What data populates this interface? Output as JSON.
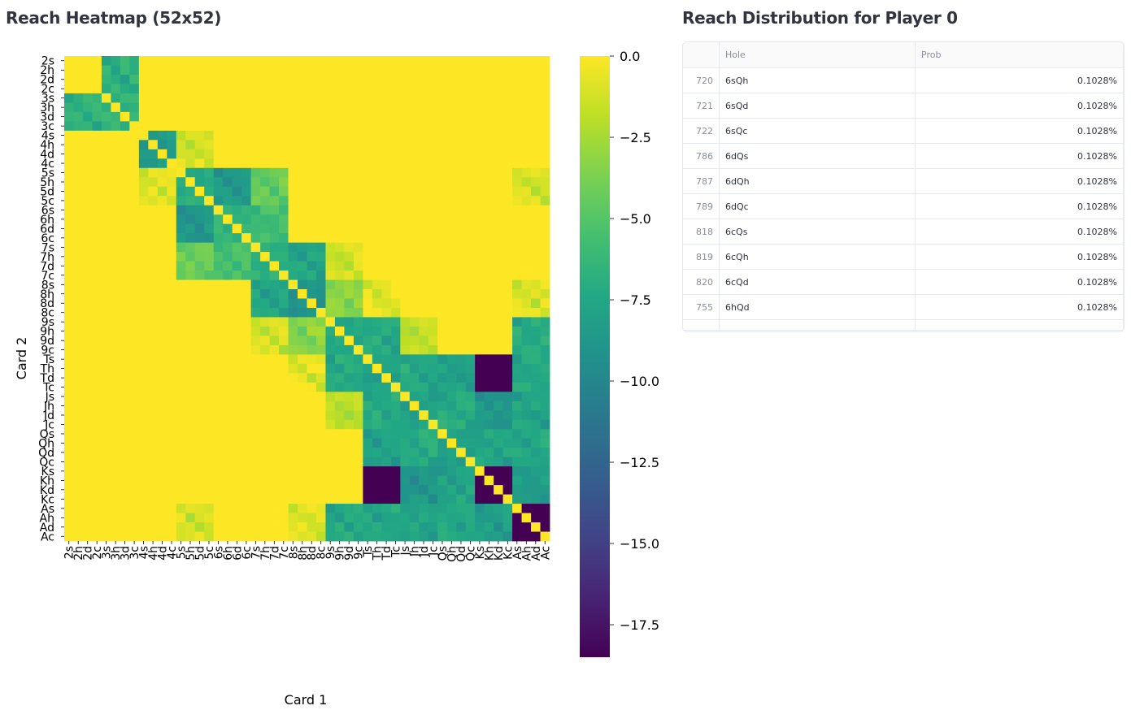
{
  "heatmap_section": {
    "title": "Reach Heatmap (52x52)"
  },
  "distribution_section": {
    "title": "Reach Distribution for Player 0"
  },
  "table": {
    "columns": [
      "",
      "Hole",
      "Prob"
    ],
    "rows": [
      {
        "index": "720",
        "hole": "6sQh",
        "prob": "0.1028%"
      },
      {
        "index": "721",
        "hole": "6sQd",
        "prob": "0.1028%"
      },
      {
        "index": "722",
        "hole": "6sQc",
        "prob": "0.1028%"
      },
      {
        "index": "786",
        "hole": "6dQs",
        "prob": "0.1028%"
      },
      {
        "index": "787",
        "hole": "6dQh",
        "prob": "0.1028%"
      },
      {
        "index": "789",
        "hole": "6dQc",
        "prob": "0.1028%"
      },
      {
        "index": "818",
        "hole": "6cQs",
        "prob": "0.1028%"
      },
      {
        "index": "819",
        "hole": "6cQh",
        "prob": "0.1028%"
      },
      {
        "index": "820",
        "hole": "6cQd",
        "prob": "0.1028%"
      },
      {
        "index": "755",
        "hole": "6hQd",
        "prob": "0.1028%"
      }
    ]
  },
  "chart_data": {
    "type": "heatmap",
    "title": "",
    "xlabel": "Card 1",
    "ylabel": "Card 2",
    "ranks": [
      "2",
      "3",
      "4",
      "5",
      "6",
      "7",
      "8",
      "9",
      "T",
      "J",
      "Q",
      "K",
      "A"
    ],
    "suits": [
      "s",
      "h",
      "d",
      "c"
    ],
    "categories": [
      "2s",
      "2h",
      "2d",
      "2c",
      "3s",
      "3h",
      "3d",
      "3c",
      "4s",
      "4h",
      "4d",
      "4c",
      "5s",
      "5h",
      "5d",
      "5c",
      "6s",
      "6h",
      "6d",
      "6c",
      "7s",
      "7h",
      "7d",
      "7c",
      "8s",
      "8h",
      "8d",
      "8c",
      "9s",
      "9h",
      "9d",
      "9c",
      "Ts",
      "Th",
      "Td",
      "Tc",
      "Js",
      "Jh",
      "Jd",
      "Jc",
      "Qs",
      "Qh",
      "Qd",
      "Qc",
      "Ks",
      "Kh",
      "Kd",
      "Kc",
      "As",
      "Ah",
      "Ad",
      "Ac"
    ],
    "colorbar": {
      "min": -18.5,
      "max": 0.0,
      "ticks": [
        0.0,
        -2.5,
        -5.0,
        -7.5,
        -10.0,
        -12.5,
        -15.0,
        -17.5
      ],
      "tick_labels": [
        "0.0",
        "−2.5",
        "−5.0",
        "−7.5",
        "−10.0",
        "−12.5",
        "−15.0",
        "−17.5"
      ],
      "colormap": "viridis"
    },
    "diagonal_value": 0.0,
    "rank_block_values": [
      [
        0,
        -6.5,
        0,
        0,
        0,
        0,
        0,
        0,
        0,
        0,
        0,
        0,
        0
      ],
      [
        -6.5,
        -6.5,
        0,
        0,
        0,
        0,
        0,
        0,
        0,
        0,
        0,
        0,
        0
      ],
      [
        0,
        0,
        -8.5,
        -0.8,
        0,
        0,
        0,
        0,
        0,
        0,
        0,
        0,
        0
      ],
      [
        0,
        0,
        -0.8,
        -7,
        -8.5,
        -4,
        0,
        0,
        0,
        0,
        0,
        0,
        -0.8
      ],
      [
        0,
        0,
        0,
        -8.5,
        -6.5,
        -5.5,
        0,
        0,
        0,
        0,
        0,
        0,
        0
      ],
      [
        0,
        0,
        0,
        -4,
        -5.5,
        -6.8,
        -7.5,
        -1,
        0,
        0,
        0,
        0,
        0
      ],
      [
        0,
        0,
        0,
        0,
        0,
        -7.5,
        -9,
        -3,
        -0.5,
        0,
        0,
        0,
        -0.8
      ],
      [
        0,
        0,
        0,
        0,
        0,
        -1,
        -3,
        -7.5,
        -7,
        -1.5,
        0,
        0,
        -7
      ],
      [
        0,
        0,
        0,
        0,
        0,
        0,
        -0.5,
        -7,
        -8,
        -7,
        -7.8,
        -18.5,
        -7.2
      ],
      [
        0,
        0,
        0,
        0,
        0,
        0,
        0,
        -1.5,
        -7,
        -8,
        -7,
        -8.5,
        -7.5
      ],
      [
        0,
        0,
        0,
        0,
        0,
        0,
        0,
        0,
        -7.8,
        -7,
        -8,
        -7.5,
        -7.2
      ],
      [
        0,
        0,
        0,
        0,
        0,
        0,
        0,
        0,
        -18.5,
        -8.5,
        -7.5,
        -18.5,
        -8
      ],
      [
        0,
        0,
        0,
        -0.8,
        0,
        0,
        -0.8,
        -7,
        -7.2,
        -7.5,
        -7.2,
        -8,
        -18.5
      ]
    ]
  }
}
